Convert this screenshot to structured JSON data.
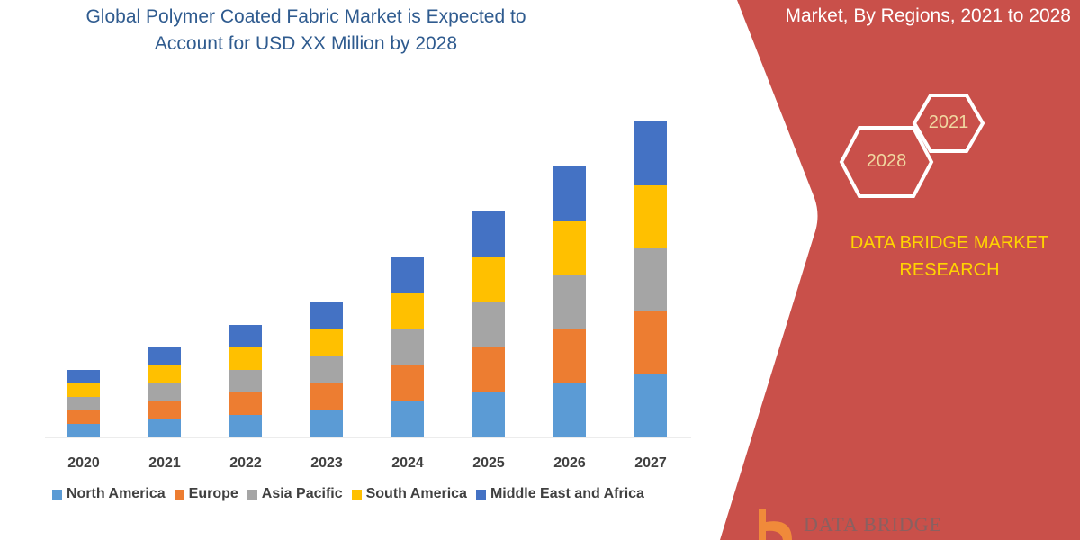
{
  "title": "Global Polymer Coated Fabric Market is Expected to Account for USD XX Million by 2028",
  "side_title": "Market, By Regions, 2021 to 2028",
  "brand": "DATA BRIDGE MARKET RESEARCH",
  "hexagons": [
    "2021",
    "2028"
  ],
  "logo": "DATA BRIDGE",
  "colors": {
    "panel": "#c9504a",
    "title": "#2f5b8f",
    "brand": "#ffd400"
  },
  "chart_data": {
    "type": "bar",
    "stacked": true,
    "title": "Global Polymer Coated Fabric Market is Expected to Account for USD XX Million by 2028",
    "categories": [
      "2020",
      "2021",
      "2022",
      "2023",
      "2024",
      "2025",
      "2026",
      "2027"
    ],
    "series": [
      {
        "name": "North America",
        "color": "#5b9bd5",
        "values": [
          15,
          20,
          25,
          30,
          40,
          50,
          60,
          70
        ]
      },
      {
        "name": "Europe",
        "color": "#ed7d31",
        "values": [
          15,
          20,
          25,
          30,
          40,
          50,
          60,
          70
        ]
      },
      {
        "name": "Asia Pacific",
        "color": "#a5a5a5",
        "values": [
          15,
          20,
          25,
          30,
          40,
          50,
          60,
          70
        ]
      },
      {
        "name": "South America",
        "color": "#ffc000",
        "values": [
          15,
          20,
          25,
          30,
          40,
          50,
          60,
          70
        ]
      },
      {
        "name": "Middle East and Africa",
        "color": "#4472c4",
        "values": [
          15,
          20,
          25,
          30,
          40,
          51,
          61,
          71
        ]
      }
    ],
    "grid": false,
    "legend": "bottom"
  }
}
